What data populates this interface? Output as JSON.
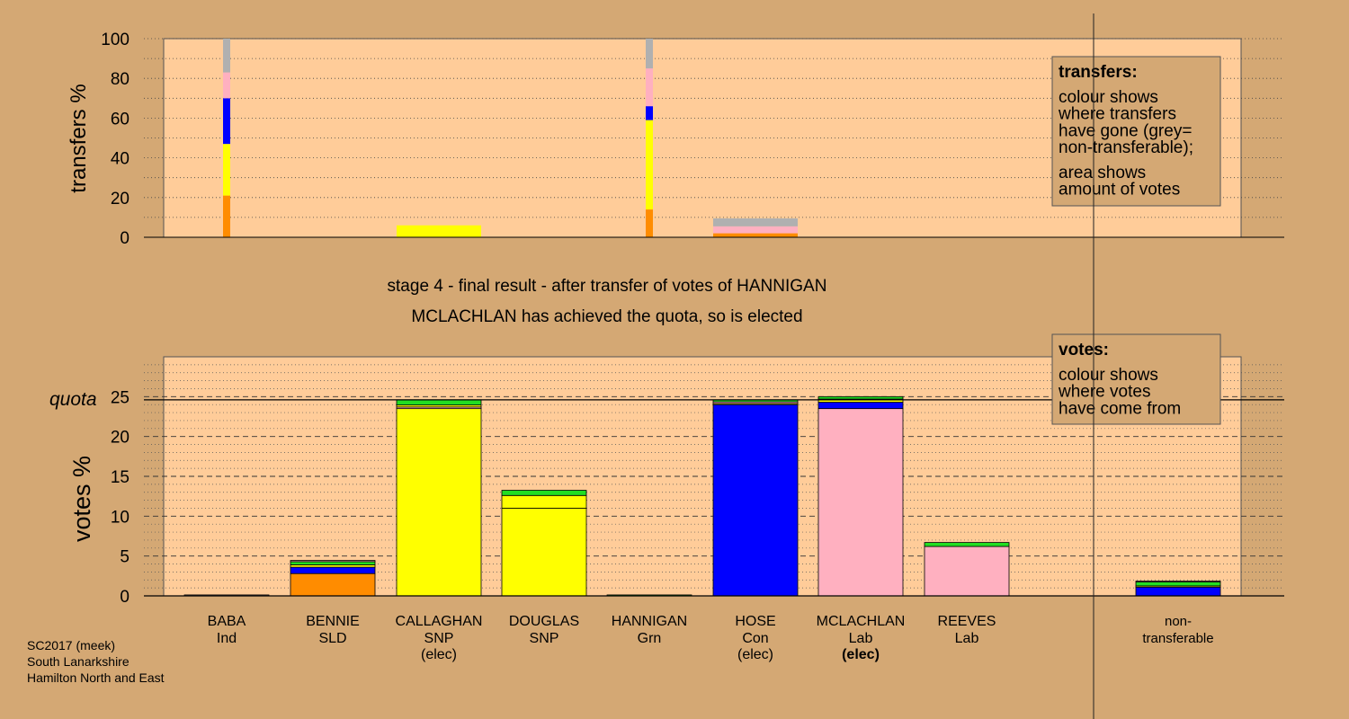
{
  "colors": {
    "background": "#d4a874",
    "plot_area": "#ffcc99",
    "legend_box": "#d4a874",
    "Ind": "#808080",
    "SLD": "#ff8c00",
    "SNP": "#ffff00",
    "Grn": "#22dd22",
    "Con": "#0000ff",
    "Lab": "#ffb0c0",
    "nontransferable": "#b0b0b0"
  },
  "chart_data": [
    {
      "type": "bar",
      "stacked": true,
      "ylabel": "transfers %",
      "ylim": [
        0,
        100
      ],
      "yticks": [
        "0",
        "20",
        "40",
        "60",
        "80",
        "100"
      ],
      "grid": "dotted horizontal",
      "legend": {
        "placement": "top-right",
        "title": "transfers:",
        "lines_a": [
          "colour shows",
          "where transfers",
          "have gone (grey=",
          "non-transferable);"
        ],
        "lines_b": [
          "area shows",
          "amount of votes"
        ]
      },
      "transfer_columns": [
        {
          "from": "BABA",
          "width": "narrow",
          "segments": [
            {
              "to": "SLD",
              "value": 21
            },
            {
              "to": "SNP",
              "value": 26
            },
            {
              "to": "Con",
              "value": 23
            },
            {
              "to": "Lab",
              "value": 13
            },
            {
              "to": "nontransferable",
              "value": 17
            }
          ]
        },
        {
          "from": "CALLAGHAN",
          "width": "wide",
          "segments": [
            {
              "to": "SNP",
              "value": 6
            }
          ]
        },
        {
          "from": "HANNIGAN",
          "width": "narrow",
          "segments": [
            {
              "to": "SLD",
              "value": 14
            },
            {
              "to": "SNP",
              "value": 45
            },
            {
              "to": "Con",
              "value": 7
            },
            {
              "to": "Lab",
              "value": 19
            },
            {
              "to": "nontransferable",
              "value": 15
            }
          ]
        },
        {
          "from": "HOSE",
          "width": "wide",
          "segments": [
            {
              "to": "SLD",
              "value": 2
            },
            {
              "to": "Lab",
              "value": 3.5
            },
            {
              "to": "nontransferable",
              "value": 4
            }
          ]
        }
      ]
    },
    {
      "type": "bar",
      "stacked": true,
      "ylabel": "votes %",
      "ylim": [
        0,
        30
      ],
      "yticks": [
        "0",
        "5",
        "10",
        "15",
        "20",
        "25"
      ],
      "quota_label": "quota",
      "quota": 24.6,
      "grid": "dashed major, dotted minor",
      "legend": {
        "placement": "top-right",
        "title": "votes:",
        "lines": [
          "colour shows",
          "where votes",
          "have come from"
        ]
      },
      "candidates": [
        {
          "name": "BABA",
          "party": "Ind",
          "elected": false,
          "segments": [
            {
              "from": "Ind",
              "value": 0.12
            }
          ]
        },
        {
          "name": "BENNIE",
          "party": "SLD",
          "elected": false,
          "segments": [
            {
              "from": "SLD",
              "value": 2.8
            },
            {
              "from": "Con",
              "value": 0.8
            },
            {
              "from": "SNP",
              "value": 0.3
            },
            {
              "from": "Grn",
              "value": 0.4
            },
            {
              "from": "Lab",
              "value": 0.15
            }
          ]
        },
        {
          "name": "CALLAGHAN",
          "party": "SNP",
          "elected": true,
          "elected_label": "(elec)",
          "segments": [
            {
              "from": "SNP",
              "value": 23.5
            },
            {
              "from": "Lab",
              "value": 0.2
            },
            {
              "from": "SNP",
              "value": 0.25
            },
            {
              "from": "Grn",
              "value": 0.65
            }
          ]
        },
        {
          "name": "DOUGLAS",
          "party": "SNP",
          "elected": false,
          "segments": [
            {
              "from": "SNP",
              "value": 11
            },
            {
              "from": "SNP",
              "value": 1.6
            },
            {
              "from": "Grn",
              "value": 0.65
            }
          ]
        },
        {
          "name": "HANNIGAN",
          "party": "Grn",
          "elected": false,
          "segments": [
            {
              "from": "Grn",
              "value": 0.12
            }
          ]
        },
        {
          "name": "HOSE",
          "party": "Con",
          "elected": true,
          "elected_label": "(elec)",
          "segments": [
            {
              "from": "Con",
              "value": 24
            },
            {
              "from": "SNP",
              "value": 0.15
            },
            {
              "from": "Lab",
              "value": 0.2
            },
            {
              "from": "Grn",
              "value": 0.25
            }
          ]
        },
        {
          "name": "MCLACHLAN",
          "party": "Lab",
          "elected": true,
          "elected_label": "(elec)",
          "segments": [
            {
              "from": "Lab",
              "value": 23.5
            },
            {
              "from": "Con",
              "value": 0.8
            },
            {
              "from": "SNP",
              "value": 0.3
            },
            {
              "from": "Lab",
              "value": 0.1
            },
            {
              "from": "Grn",
              "value": 0.3
            }
          ]
        },
        {
          "name": "REEVES",
          "party": "Lab",
          "elected": false,
          "segments": [
            {
              "from": "Lab",
              "value": 6.2
            },
            {
              "from": "Grn",
              "value": 0.5
            }
          ]
        },
        {
          "name": "non-transferable",
          "name_line2": "transferable",
          "name_line1": "non-",
          "party": "",
          "elected": false,
          "is_nt": true,
          "segments": [
            {
              "from": "Con",
              "value": 1.1
            },
            {
              "from": "SNP",
              "value": 0.15
            },
            {
              "from": "Grn",
              "value": 0.5
            },
            {
              "from": "Lab",
              "value": 0.1
            }
          ]
        }
      ]
    }
  ],
  "stage_title": "stage 4 - final result - after transfer of votes of HANNIGAN",
  "stage_subtitle": "MCLACHLAN has achieved the quota, so is elected",
  "footer": {
    "line1": "SC2017 (meek)",
    "line2": "South Lanarkshire",
    "line3": "Hamilton North and East"
  }
}
